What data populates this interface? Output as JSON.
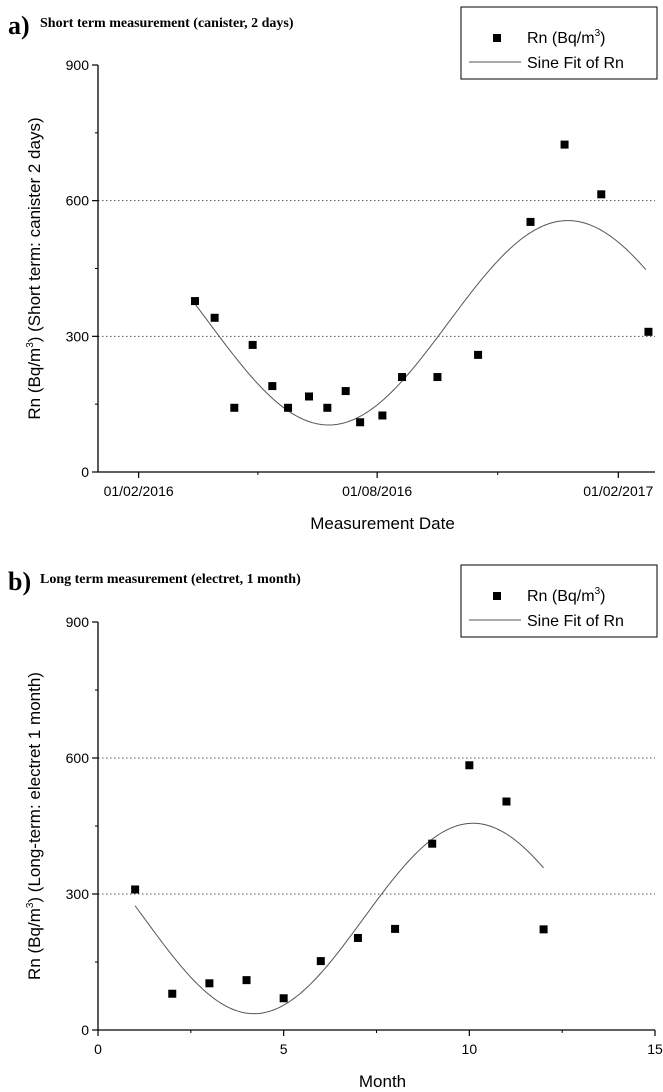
{
  "chart_data": [
    {
      "panel": "a)",
      "title": "Short term measurement (canister, 2 days)",
      "type": "scatter",
      "xlabel": "Measurement Date",
      "ylabel": "Rn (Bq/m",
      "ylabel_sup": "3",
      "ylabel_rest": ") (Short term: canister 2 days)",
      "x_type": "date",
      "xlim": [
        "2016-01-01",
        "2017-03-01"
      ],
      "xticks": [
        "2016-02-01",
        "2016-08-01",
        "2017-02-01"
      ],
      "xtick_labels": [
        "01/02/2016",
        "01/08/2016",
        "01/02/2017"
      ],
      "ylim": [
        0,
        900
      ],
      "yticks": [
        0,
        300,
        600,
        900
      ],
      "ytick_labels": [
        "0",
        "300",
        "600",
        "900"
      ],
      "gridlines_y": [
        300,
        600
      ],
      "legend_position": "top-right",
      "series": [
        {
          "name": "Rn (Bq/m",
          "name_sup": "3",
          "name_rest": ")",
          "kind": "scatter",
          "color": "#000000",
          "points": [
            [
              "2016-03-15",
              378
            ],
            [
              "2016-03-30",
              341
            ],
            [
              "2016-04-14",
              142
            ],
            [
              "2016-04-28",
              281
            ],
            [
              "2016-05-13",
              190
            ],
            [
              "2016-05-25",
              142
            ],
            [
              "2016-06-10",
              167
            ],
            [
              "2016-06-24",
              142
            ],
            [
              "2016-07-08",
              179
            ],
            [
              "2016-07-19",
              110
            ],
            [
              "2016-08-05",
              125
            ],
            [
              "2016-08-20",
              210
            ],
            [
              "2016-09-16",
              210
            ],
            [
              "2016-10-17",
              259
            ],
            [
              "2016-11-26",
              553
            ],
            [
              "2016-12-22",
              724
            ],
            [
              "2017-01-19",
              614
            ],
            [
              "2017-02-24",
              310
            ]
          ]
        },
        {
          "name": "Sine Fit of Rn",
          "kind": "line",
          "color": "#555555",
          "model": {
            "offset": 330,
            "amplitude": 226,
            "period_days": 365,
            "min_date": "2016-06-25",
            "x_start": "2016-03-15",
            "x_end": "2017-02-22"
          }
        }
      ]
    },
    {
      "panel": "b)",
      "title": "Long term measurement (electret, 1 month)",
      "type": "scatter",
      "xlabel": "Month",
      "ylabel": "Rn (Bq/m",
      "ylabel_sup": "3",
      "ylabel_rest": ") (Long-term: electret 1 month)",
      "x_type": "number",
      "xlim": [
        0,
        15
      ],
      "xticks": [
        0,
        5,
        10,
        15
      ],
      "xtick_labels": [
        "0",
        "5",
        "10",
        "15"
      ],
      "ylim": [
        0,
        900
      ],
      "yticks": [
        0,
        300,
        600,
        900
      ],
      "ytick_labels": [
        "0",
        "300",
        "600",
        "900"
      ],
      "gridlines_y": [
        300,
        600
      ],
      "legend_position": "top-right",
      "series": [
        {
          "name": "Rn (Bq/m",
          "name_sup": "3",
          "name_rest": ")",
          "kind": "scatter",
          "color": "#000000",
          "points": [
            [
              1,
              310
            ],
            [
              2,
              80
            ],
            [
              3,
              103
            ],
            [
              4,
              110
            ],
            [
              5,
              70
            ],
            [
              6,
              152
            ],
            [
              7,
              203
            ],
            [
              8,
              223
            ],
            [
              9,
              411
            ],
            [
              10,
              584
            ],
            [
              11,
              504
            ],
            [
              12,
              222
            ]
          ]
        },
        {
          "name": "Sine Fit of Rn",
          "kind": "line",
          "color": "#555555",
          "model": {
            "offset": 246,
            "amplitude": 210,
            "period": 11.8,
            "min_x": 4.2,
            "x_start": 1,
            "x_end": 12
          }
        }
      ]
    }
  ]
}
